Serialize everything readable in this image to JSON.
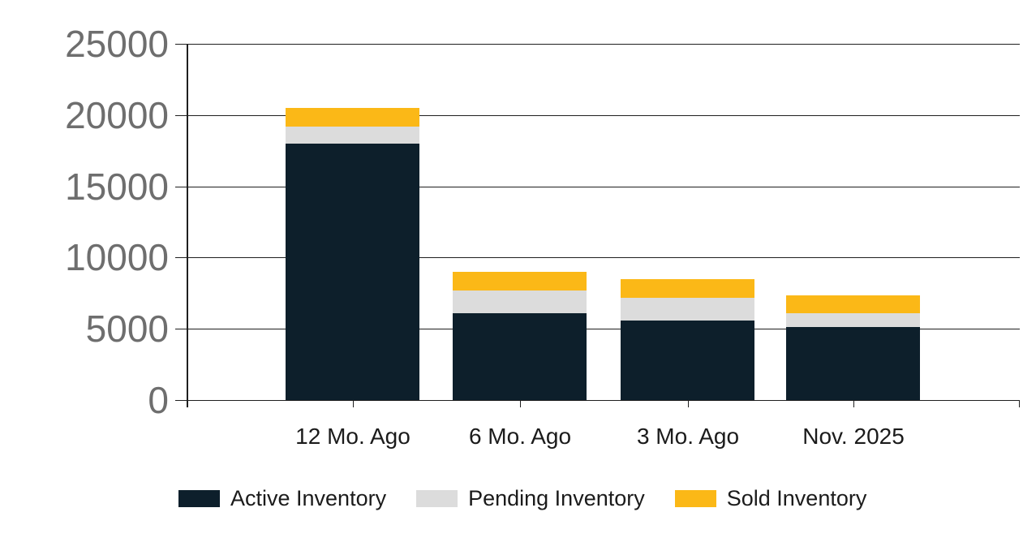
{
  "chart_data": {
    "type": "bar",
    "stacked": true,
    "title": "",
    "xlabel": "",
    "ylabel": "",
    "categories": [
      "12 Mo. Ago",
      "6 Mo. Ago",
      "3 Mo. Ago",
      "Nov. 2025"
    ],
    "series": [
      {
        "name": "Active Inventory",
        "color": "#0d1f2b",
        "values": [
          18000,
          6100,
          5600,
          5100
        ]
      },
      {
        "name": "Pending Inventory",
        "color": "#dcdcdc",
        "values": [
          1200,
          1600,
          1600,
          1000
        ]
      },
      {
        "name": "Sold Inventory",
        "color": "#fbb817",
        "values": [
          1300,
          1300,
          1300,
          1250
        ]
      }
    ],
    "ylim": [
      0,
      25000
    ],
    "ytick_labels_top_to_bottom": [
      "25000",
      "20000",
      "15000",
      "10000",
      "5000",
      "0"
    ],
    "grid": true,
    "legend_position": "bottom",
    "colors": {
      "axis_and_grid": "#1f1f1f",
      "y_tick_text": "#6e6e6e",
      "x_tick_text": "#1b1b1b",
      "background": "#ffffff"
    }
  }
}
